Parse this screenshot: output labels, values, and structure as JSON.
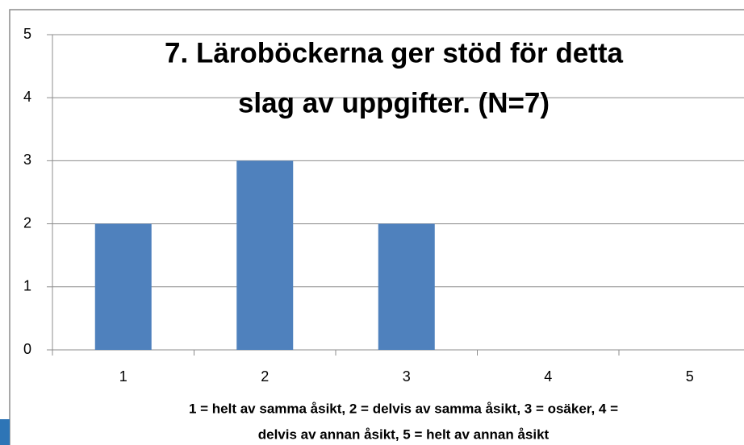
{
  "chart_data": {
    "type": "bar",
    "title": [
      "7. Läroböckerna ger stöd för detta",
      "slag av uppgifter. (N=7)"
    ],
    "x_label": [
      "1 = helt av samma åsikt, 2 = delvis av samma åsikt, 3 = osäker, 4 =",
      "delvis av annan åsikt, 5 = helt av annan åsikt"
    ],
    "categories": [
      "1",
      "2",
      "3",
      "4",
      "5"
    ],
    "values": [
      2,
      3,
      2,
      0,
      0
    ],
    "color": "#4f81bd",
    "ylim": [
      0,
      5
    ],
    "yticks": [
      0,
      1,
      2,
      3,
      4,
      5
    ],
    "grid": true
  }
}
